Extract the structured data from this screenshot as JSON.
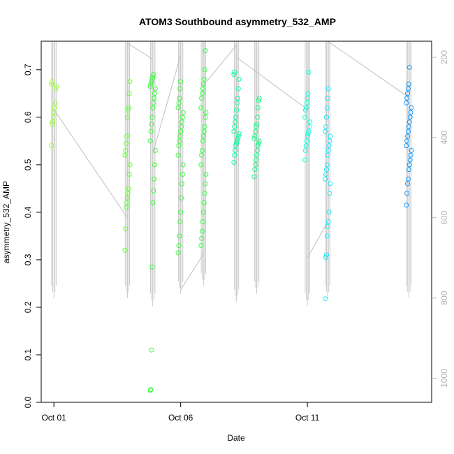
{
  "chart_data": {
    "type": "scatter",
    "title": "ATOM3 Southbound asymmetry_532_AMP",
    "xlabel": "Date",
    "ylabel": "asymmetry_532_AMP",
    "x_ticks": [
      "Oct 01",
      "Oct 06",
      "Oct 11"
    ],
    "y_ticks": [
      "0.0",
      "0.1",
      "0.2",
      "0.3",
      "0.4",
      "0.5",
      "0.6",
      "0.7"
    ],
    "y_ticks_right": [
      "200",
      "400",
      "600",
      "800",
      "1000"
    ],
    "ylim": [
      0,
      0.76
    ],
    "y2lim": [
      1060,
      160
    ],
    "xlim_days": [
      0.5,
      15.9
    ],
    "grid": false,
    "point_groups": [
      {
        "day": 1.0,
        "values": [
          0.54,
          0.585,
          0.59,
          0.6,
          0.61,
          0.62,
          0.63,
          0.66,
          0.665,
          0.67,
          0.675
        ],
        "color": "#99ff33"
      },
      {
        "day": 3.9,
        "values": [
          0.32,
          0.365,
          0.41,
          0.42,
          0.43,
          0.44,
          0.45,
          0.48,
          0.5,
          0.52,
          0.53,
          0.545,
          0.56,
          0.6,
          0.615,
          0.62,
          0.65,
          0.675
        ],
        "color": "#66ff33"
      },
      {
        "day": 4.9,
        "values": [
          0.025,
          0.027,
          0.11,
          0.285,
          0.42,
          0.445,
          0.47,
          0.5,
          0.53,
          0.55,
          0.57,
          0.585,
          0.6,
          0.62,
          0.63,
          0.64,
          0.65,
          0.66,
          0.665,
          0.67,
          0.675,
          0.68,
          0.685,
          0.69
        ],
        "color": "#33ff33"
      },
      {
        "day": 6.0,
        "values": [
          0.315,
          0.33,
          0.35,
          0.38,
          0.4,
          0.43,
          0.46,
          0.48,
          0.5,
          0.52,
          0.54,
          0.55,
          0.56,
          0.57,
          0.58,
          0.59,
          0.6,
          0.61,
          0.62,
          0.63,
          0.64,
          0.66,
          0.675
        ],
        "color": "#33ff33"
      },
      {
        "day": 6.9,
        "values": [
          0.33,
          0.345,
          0.36,
          0.38,
          0.4,
          0.42,
          0.44,
          0.46,
          0.48,
          0.5,
          0.52,
          0.53,
          0.55,
          0.56,
          0.57,
          0.58,
          0.6,
          0.61,
          0.62,
          0.64,
          0.65,
          0.66,
          0.67,
          0.68,
          0.7,
          0.74
        ],
        "color": "#33ff44"
      },
      {
        "day": 8.2,
        "values": [
          0.505,
          0.52,
          0.53,
          0.54,
          0.545,
          0.55,
          0.555,
          0.56,
          0.565,
          0.57,
          0.58,
          0.59,
          0.6,
          0.615,
          0.63,
          0.64,
          0.66,
          0.68,
          0.69,
          0.695
        ],
        "color": "#00ff99"
      },
      {
        "day": 9.0,
        "values": [
          0.475,
          0.49,
          0.5,
          0.51,
          0.52,
          0.53,
          0.54,
          0.545,
          0.55,
          0.555,
          0.56,
          0.57,
          0.58,
          0.585,
          0.6,
          0.62,
          0.635,
          0.64
        ],
        "color": "#11ff88"
      },
      {
        "day": 11.0,
        "values": [
          0.51,
          0.53,
          0.54,
          0.55,
          0.56,
          0.565,
          0.57,
          0.58,
          0.59,
          0.6,
          0.615,
          0.62,
          0.63,
          0.64,
          0.65,
          0.695
        ],
        "color": "#11ffdd"
      },
      {
        "day": 11.8,
        "values": [
          0.218,
          0.305,
          0.31,
          0.35,
          0.37,
          0.38,
          0.4,
          0.44,
          0.46,
          0.47,
          0.48,
          0.49,
          0.5,
          0.52,
          0.53,
          0.54,
          0.55,
          0.56,
          0.57,
          0.58,
          0.6,
          0.62,
          0.64,
          0.66
        ],
        "color": "#11eeff"
      },
      {
        "day": 15.0,
        "values": [
          0.415,
          0.44,
          0.46,
          0.47,
          0.49,
          0.5,
          0.51,
          0.52,
          0.53,
          0.54,
          0.55,
          0.56,
          0.57,
          0.58,
          0.59,
          0.6,
          0.61,
          0.62,
          0.63,
          0.64,
          0.65,
          0.66,
          0.67,
          0.705
        ],
        "color": "#1199ff"
      }
    ],
    "profile_lines_right_axis": [
      {
        "day": 1.0,
        "bottom": 800,
        "top": 160
      },
      {
        "day": 3.9,
        "bottom": 800,
        "top": 160
      },
      {
        "day": 4.9,
        "bottom": 820,
        "top": 160
      },
      {
        "day": 6.0,
        "bottom": 790,
        "top": 160
      },
      {
        "day": 6.9,
        "bottom": 770,
        "top": 160
      },
      {
        "day": 8.2,
        "bottom": 810,
        "top": 160
      },
      {
        "day": 9.0,
        "bottom": 790,
        "top": 160
      },
      {
        "day": 11.0,
        "bottom": 820,
        "top": 160
      },
      {
        "day": 11.8,
        "bottom": 800,
        "top": 160
      },
      {
        "day": 15.0,
        "bottom": 800,
        "top": 160
      }
    ],
    "connector_lines_right_axis": [
      [
        [
          1.0,
          330
        ],
        [
          3.9,
          600
        ]
      ],
      [
        [
          3.9,
          165
        ],
        [
          4.9,
          205
        ]
      ],
      [
        [
          4.9,
          440
        ],
        [
          6.0,
          195
        ]
      ],
      [
        [
          6.0,
          780
        ],
        [
          6.9,
          690
        ]
      ],
      [
        [
          6.9,
          270
        ],
        [
          8.2,
          170
        ]
      ],
      [
        [
          8.2,
          200
        ],
        [
          11.0,
          330
        ]
      ],
      [
        [
          11.0,
          700
        ],
        [
          11.8,
          610
        ]
      ],
      [
        [
          11.8,
          160
        ],
        [
          15.0,
          300
        ]
      ]
    ],
    "series_line_color": "#bfbfbf"
  }
}
